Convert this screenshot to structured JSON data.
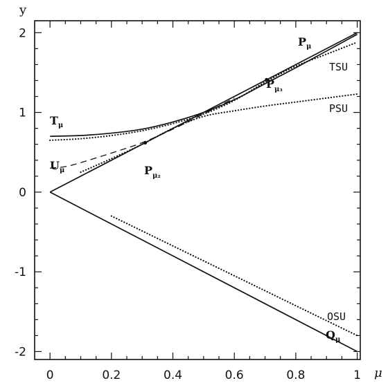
{
  "chart_data": {
    "type": "line",
    "title": "",
    "xlabel": "μ",
    "ylabel": "y",
    "xlim": [
      -0.05,
      1.01
    ],
    "ylim": [
      -2.1,
      2.15
    ],
    "xticks": [
      0,
      0.2,
      0.4,
      0.6,
      0.8,
      1
    ],
    "xtick_labels": [
      "0",
      "0.2",
      "0.4",
      "0.6",
      "0.8",
      "1"
    ],
    "yticks": [
      -2,
      -1,
      0,
      1,
      2
    ],
    "ytick_labels": [
      "-2",
      "-1",
      "0",
      "1",
      "2"
    ],
    "grid": false,
    "series": [
      {
        "name": "P_μ",
        "style": "solid",
        "x": [
          0,
          1
        ],
        "y": [
          0,
          2
        ]
      },
      {
        "name": "Q_μ",
        "style": "solid",
        "x": [
          0,
          1
        ],
        "y": [
          0,
          -2
        ]
      },
      {
        "name": "T_μ",
        "style": "solid",
        "x": [
          0,
          0.1,
          0.2,
          0.3,
          0.4,
          0.5,
          0.6,
          0.7,
          0.8,
          0.9,
          1
        ],
        "y": [
          0.7,
          0.71,
          0.74,
          0.79,
          0.88,
          1.0,
          1.16,
          1.36,
          1.56,
          1.77,
          1.98
        ]
      },
      {
        "name": "U_μ",
        "style": "dashed",
        "x": [
          0,
          0.05,
          0.1,
          0.2,
          0.3,
          0.4,
          0.5,
          0.55,
          0.6
        ],
        "y": [
          0.3,
          0.32,
          0.37,
          0.49,
          0.62,
          0.79,
          0.98,
          1.08,
          1.18
        ]
      },
      {
        "name": "TSU",
        "style": "dotted",
        "x": [
          0,
          0.1,
          0.2,
          0.3,
          0.4,
          0.5,
          0.6,
          0.7,
          0.8,
          0.9,
          1
        ],
        "y": [
          0.65,
          0.67,
          0.71,
          0.77,
          0.86,
          0.98,
          1.15,
          1.38,
          1.58,
          1.73,
          1.88
        ]
      },
      {
        "name": "PSU",
        "style": "dotted",
        "x": [
          0.1,
          0.2,
          0.3,
          0.4,
          0.5,
          0.6,
          0.7,
          0.8,
          0.9,
          1
        ],
        "y": [
          0.25,
          0.42,
          0.6,
          0.8,
          0.95,
          1.02,
          1.08,
          1.13,
          1.18,
          1.23
        ]
      },
      {
        "name": "OSU",
        "style": "dotted",
        "x": [
          0.2,
          1
        ],
        "y": [
          -0.3,
          -1.8
        ]
      }
    ],
    "points": [
      {
        "name": "P_μ₂",
        "x": 0.31,
        "y": 0.62
      },
      {
        "name": "P_μ₃",
        "x": 0.705,
        "y": 1.41
      }
    ],
    "labels": {
      "P_mu": {
        "main": "P",
        "sub": "μ"
      },
      "Q_mu": {
        "main": "Q",
        "sub": "μ"
      },
      "T_mu": {
        "main": "T",
        "sub": "μ"
      },
      "U_mu": {
        "main": "U",
        "sub": "μ"
      },
      "P_mu2": {
        "main": "P",
        "sub": "μ₂"
      },
      "P_mu3": {
        "main": "P",
        "sub": "μ₃"
      },
      "TSU": "TSU",
      "PSU": "PSU",
      "OSU": "OSU"
    }
  }
}
